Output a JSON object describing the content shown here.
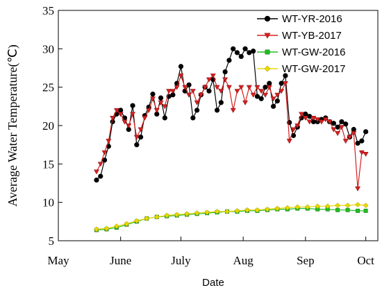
{
  "chart_data": {
    "type": "line",
    "xlabel": "Date",
    "ylabel": "Average Water Temperature(℃)",
    "ylim": [
      5,
      35
    ],
    "yticks": [
      5,
      10,
      15,
      20,
      25,
      30,
      35
    ],
    "xlim": [
      "2016-05-01",
      "2016-10-07"
    ],
    "xticks": [
      {
        "label": "May",
        "date": "2016-05-01"
      },
      {
        "label": "June",
        "date": "2016-06-01"
      },
      {
        "label": "July",
        "date": "2016-07-01"
      },
      {
        "label": "Aug",
        "date": "2016-08-01"
      },
      {
        "label": "Sep",
        "date": "2016-09-01"
      },
      {
        "label": "Oct",
        "date": "2016-10-01"
      }
    ],
    "grid": false,
    "legend_position": "top-right",
    "series": [
      {
        "name": "WT-YR-2016",
        "color": "#000000",
        "marker": "circle",
        "x": [
          "2016-05-20",
          "2016-05-22",
          "2016-05-24",
          "2016-05-26",
          "2016-05-28",
          "2016-05-30",
          "2016-06-01",
          "2016-06-03",
          "2016-06-05",
          "2016-06-07",
          "2016-06-09",
          "2016-06-11",
          "2016-06-13",
          "2016-06-15",
          "2016-06-17",
          "2016-06-19",
          "2016-06-21",
          "2016-06-23",
          "2016-06-25",
          "2016-06-27",
          "2016-06-29",
          "2016-07-01",
          "2016-07-03",
          "2016-07-05",
          "2016-07-07",
          "2016-07-09",
          "2016-07-11",
          "2016-07-13",
          "2016-07-15",
          "2016-07-17",
          "2016-07-19",
          "2016-07-21",
          "2016-07-23",
          "2016-07-25",
          "2016-07-27",
          "2016-07-29",
          "2016-07-31",
          "2016-08-02",
          "2016-08-04",
          "2016-08-06",
          "2016-08-08",
          "2016-08-10",
          "2016-08-12",
          "2016-08-14",
          "2016-08-16",
          "2016-08-18",
          "2016-08-20",
          "2016-08-22",
          "2016-08-24",
          "2016-08-26",
          "2016-08-28",
          "2016-08-30",
          "2016-09-01",
          "2016-09-03",
          "2016-09-05",
          "2016-09-07",
          "2016-09-09",
          "2016-09-11",
          "2016-09-13",
          "2016-09-15",
          "2016-09-17",
          "2016-09-19",
          "2016-09-21",
          "2016-09-23",
          "2016-09-25",
          "2016-09-27",
          "2016-09-29",
          "2016-10-01"
        ],
        "y": [
          12.9,
          13.4,
          15.5,
          17.3,
          20.5,
          21.5,
          22.0,
          21.0,
          19.5,
          22.6,
          17.5,
          18.5,
          21.3,
          22.4,
          24.1,
          21.5,
          23.6,
          21.0,
          23.8,
          24.0,
          25.5,
          27.7,
          24.5,
          25.3,
          21.0,
          22.0,
          24.0,
          25.0,
          24.5,
          26.0,
          22.0,
          23.0,
          27.0,
          28.5,
          30.0,
          29.5,
          29.0,
          30.0,
          29.5,
          29.7,
          23.8,
          23.5,
          25.0,
          25.5,
          22.5,
          23.2,
          25.5,
          26.5,
          20.4,
          18.7,
          19.8,
          21.0,
          21.5,
          21.2,
          20.5,
          20.5,
          20.8,
          21.0,
          20.5,
          20.3,
          19.8,
          20.5,
          20.2,
          18.5,
          19.5,
          17.7,
          18.0,
          19.2
        ]
      },
      {
        "name": "WT-YB-2017",
        "color": "#d42020",
        "marker": "triangle-down",
        "x": [
          "2016-05-20",
          "2016-05-22",
          "2016-05-24",
          "2016-05-26",
          "2016-05-28",
          "2016-05-30",
          "2016-06-01",
          "2016-06-03",
          "2016-06-05",
          "2016-06-07",
          "2016-06-09",
          "2016-06-11",
          "2016-06-13",
          "2016-06-15",
          "2016-06-17",
          "2016-06-19",
          "2016-06-21",
          "2016-06-23",
          "2016-06-25",
          "2016-06-27",
          "2016-06-29",
          "2016-07-01",
          "2016-07-03",
          "2016-07-05",
          "2016-07-07",
          "2016-07-09",
          "2016-07-11",
          "2016-07-13",
          "2016-07-15",
          "2016-07-17",
          "2016-07-19",
          "2016-07-21",
          "2016-07-23",
          "2016-07-25",
          "2016-07-27",
          "2016-07-29",
          "2016-07-31",
          "2016-08-02",
          "2016-08-04",
          "2016-08-06",
          "2016-08-08",
          "2016-08-10",
          "2016-08-12",
          "2016-08-14",
          "2016-08-16",
          "2016-08-18",
          "2016-08-20",
          "2016-08-22",
          "2016-08-24",
          "2016-08-26",
          "2016-08-28",
          "2016-08-30",
          "2016-09-01",
          "2016-09-03",
          "2016-09-05",
          "2016-09-07",
          "2016-09-09",
          "2016-09-11",
          "2016-09-13",
          "2016-09-15",
          "2016-09-17",
          "2016-09-19",
          "2016-09-21",
          "2016-09-23",
          "2016-09-25",
          "2016-09-27",
          "2016-09-29",
          "2016-10-01"
        ],
        "y": [
          14.0,
          15.0,
          16.5,
          18.0,
          21.0,
          22.0,
          21.5,
          20.5,
          20.0,
          21.5,
          18.5,
          19.5,
          21.0,
          22.0,
          23.5,
          22.0,
          23.0,
          22.5,
          24.5,
          24.5,
          25.0,
          26.5,
          25.0,
          24.0,
          24.5,
          23.0,
          24.0,
          25.0,
          26.0,
          26.5,
          25.0,
          24.5,
          26.0,
          25.0,
          22.0,
          24.5,
          25.0,
          23.0,
          25.0,
          24.0,
          25.0,
          24.5,
          24.0,
          25.0,
          23.5,
          24.0,
          24.5,
          25.5,
          18.0,
          19.5,
          20.0,
          21.5,
          21.0,
          20.5,
          21.0,
          20.8,
          20.5,
          20.8,
          20.5,
          19.5,
          19.0,
          19.8,
          18.0,
          18.5,
          19.0,
          11.8,
          16.5,
          16.3
        ]
      },
      {
        "name": "WT-GW-2016",
        "color": "#22bb22",
        "marker": "square",
        "x": [
          "2016-05-20",
          "2016-05-25",
          "2016-05-30",
          "2016-06-04",
          "2016-06-09",
          "2016-06-14",
          "2016-06-19",
          "2016-06-24",
          "2016-06-29",
          "2016-07-04",
          "2016-07-09",
          "2016-07-14",
          "2016-07-19",
          "2016-07-24",
          "2016-07-29",
          "2016-08-03",
          "2016-08-08",
          "2016-08-13",
          "2016-08-18",
          "2016-08-23",
          "2016-08-28",
          "2016-09-02",
          "2016-09-07",
          "2016-09-12",
          "2016-09-17",
          "2016-09-22",
          "2016-09-27",
          "2016-10-01"
        ],
        "y": [
          6.4,
          6.5,
          6.7,
          7.1,
          7.5,
          7.9,
          8.1,
          8.2,
          8.3,
          8.4,
          8.5,
          8.6,
          8.7,
          8.8,
          8.8,
          8.9,
          8.9,
          9.0,
          9.1,
          9.1,
          9.2,
          9.2,
          9.1,
          9.1,
          9.0,
          9.0,
          8.9,
          8.9
        ]
      },
      {
        "name": "WT-GW-2017",
        "color": "#e8d800",
        "marker": "diamond",
        "x": [
          "2016-05-20",
          "2016-05-25",
          "2016-05-30",
          "2016-06-04",
          "2016-06-09",
          "2016-06-14",
          "2016-06-19",
          "2016-06-24",
          "2016-06-29",
          "2016-07-04",
          "2016-07-09",
          "2016-07-14",
          "2016-07-19",
          "2016-07-24",
          "2016-07-29",
          "2016-08-03",
          "2016-08-08",
          "2016-08-13",
          "2016-08-18",
          "2016-08-23",
          "2016-08-28",
          "2016-09-02",
          "2016-09-07",
          "2016-09-12",
          "2016-09-17",
          "2016-09-22",
          "2016-09-27",
          "2016-10-01"
        ],
        "y": [
          6.5,
          6.6,
          6.9,
          7.2,
          7.6,
          7.9,
          8.1,
          8.3,
          8.4,
          8.5,
          8.6,
          8.7,
          8.8,
          8.8,
          8.9,
          9.0,
          9.0,
          9.1,
          9.2,
          9.3,
          9.4,
          9.4,
          9.5,
          9.5,
          9.6,
          9.6,
          9.7,
          9.6
        ]
      }
    ]
  }
}
